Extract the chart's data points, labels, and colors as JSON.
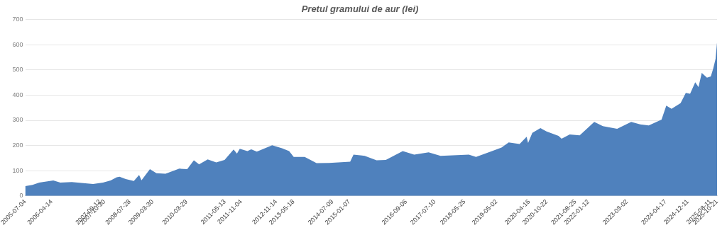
{
  "chart_data": {
    "type": "area",
    "title": "Pretul gramului de aur (lei)",
    "x": [
      "2005-07-04",
      "2005-09-20",
      "2005-12-01",
      "2006-05-01",
      "2006-07-15",
      "2006-11-15",
      "2007-07-01",
      "2007-10-15",
      "2008-01-05",
      "2008-03-10",
      "2008-04-10",
      "2008-06-15",
      "2008-09-10",
      "2008-11-05",
      "2008-12-01",
      "2009-03-01",
      "2009-05-10",
      "2009-08-15",
      "2010-01-10",
      "2010-04-05",
      "2010-06-15",
      "2010-08-10",
      "2010-11-10",
      "2011-02-10",
      "2011-05-10",
      "2011-08-15",
      "2011-09-20",
      "2011-10-20",
      "2012-01-10",
      "2012-02-20",
      "2012-04-20",
      "2012-10-01",
      "2013-01-15",
      "2013-04-01",
      "2013-05-20",
      "2013-09-15",
      "2014-01-20",
      "2014-06-05",
      "2015-01-15",
      "2015-02-20",
      "2015-06-20",
      "2015-10-25",
      "2016-02-01",
      "2016-08-01",
      "2016-12-01",
      "2017-05-05",
      "2017-09-10",
      "2018-07-10",
      "2018-09-25",
      "2019-03-15",
      "2019-06-25",
      "2019-09-10",
      "2020-01-05",
      "2020-03-20",
      "2020-04-05",
      "2020-05-20",
      "2020-08-15",
      "2020-10-20",
      "2021-02-25",
      "2021-03-30",
      "2021-06-25",
      "2021-10-10",
      "2022-03-15",
      "2022-06-15",
      "2022-11-15",
      "2023-04-15",
      "2023-07-20",
      "2023-10-20",
      "2024-03-05",
      "2024-04-25",
      "2024-06-20",
      "2024-09-25",
      "2024-11-20",
      "2025-01-05",
      "2025-03-01",
      "2025-04-05",
      "2025-05-10",
      "2025-07-05",
      "2025-08-15",
      "2025-09-10",
      "2025-10-05",
      "2025-10-21"
    ],
    "series": [
      {
        "color": "#4f81bd",
        "values": [
          39,
          44,
          53,
          61,
          53,
          55,
          47,
          53,
          61,
          74,
          76,
          67,
          59,
          83,
          62,
          106,
          90,
          88,
          108,
          106,
          141,
          125,
          145,
          133,
          143,
          184,
          168,
          187,
          178,
          185,
          176,
          201,
          189,
          178,
          155,
          155,
          130,
          131,
          136,
          164,
          159,
          141,
          143,
          178,
          164,
          173,
          159,
          164,
          155,
          178,
          192,
          212,
          206,
          235,
          210,
          250,
          269,
          256,
          238,
          227,
          244,
          240,
          294,
          277,
          266,
          294,
          284,
          280,
          303,
          358,
          346,
          368,
          409,
          405,
          451,
          432,
          488,
          469,
          474,
          506,
          544,
          608
        ]
      }
    ],
    "xlim": [
      "2005-07-04",
      "2025-10-21"
    ],
    "xticks": [
      "2005-07-04",
      "2006-04-14",
      "2007-09-12",
      "2007-10-30",
      "2008-07-28",
      "2009-03-30",
      "2010-03-29",
      "2011-05-13",
      "2011-11-04",
      "2012-11-14",
      "2013-05-18",
      "2014-07-09",
      "2015-01-07",
      "2016-09-06",
      "2017-07-10",
      "2018-05-25",
      "2019-05-02",
      "2020-04-16",
      "2020-10-22",
      "2021-08-25",
      "2022-01-12",
      "2023-03-02",
      "2024-04-17",
      "2024-12-11",
      "2025-08-11",
      "2025-10-21"
    ],
    "ylim": [
      0,
      700
    ],
    "yticks": [
      0,
      100,
      200,
      300,
      400,
      500,
      600,
      700
    ],
    "grid": "y",
    "legend": false
  }
}
